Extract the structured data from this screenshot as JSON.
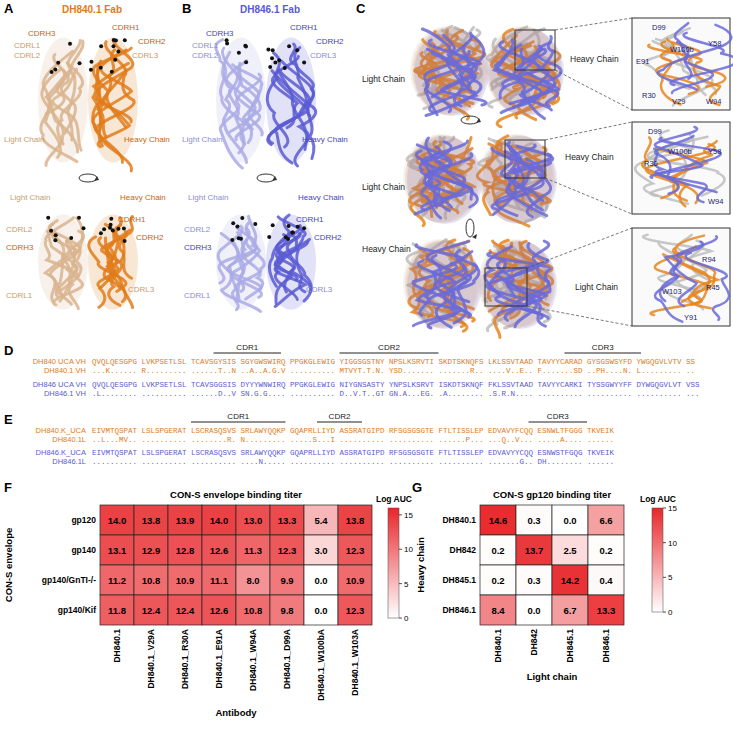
{
  "panels": {
    "A": {
      "label": "A",
      "title": "DH840.1 Fab",
      "top_labels": [
        "CDRH3",
        "CDRH1",
        "CDRH2",
        "CDRL1",
        "CDRL2",
        "CDRL3",
        "Light Chain",
        "Heavy Chain"
      ],
      "bottom_labels": [
        "CDRH1",
        "CDRH2",
        "CDRH3",
        "CDRL2",
        "CDRL3",
        "CDRL1",
        "Light Chain",
        "Heavy Chain"
      ]
    },
    "B": {
      "label": "B",
      "title": "DH846.1 Fab",
      "top_labels": [
        "CDRH3",
        "CDRH1",
        "CDRH2",
        "CDRL1",
        "CDRL2",
        "CDRL3",
        "Light Chain",
        "Heavy Chain"
      ],
      "bottom_labels": [
        "CDRH1",
        "CDRH2",
        "CDRH3",
        "CDRL2",
        "CDRL3",
        "CDRL1",
        "Light Chain",
        "Heavy Chain"
      ]
    },
    "C": {
      "label": "C",
      "views": [
        {
          "labels": [
            "Light Chain",
            "Heavy Chain"
          ],
          "residues": [
            "D99",
            "W100b",
            "Y58",
            "E91",
            "V29",
            "R30",
            "W94"
          ]
        },
        {
          "labels": [
            "Light Chain",
            "Heavy Chain"
          ],
          "residues": [
            "D99",
            "W100b",
            "Y58",
            "R30",
            "W94"
          ]
        },
        {
          "labels": [
            "Heavy Chain",
            "Light Chain"
          ],
          "residues": [
            "R94",
            "R45",
            "W103",
            "Y91"
          ]
        }
      ]
    },
    "D": {
      "label": "D",
      "headers": [
        "CDR1",
        "CDR2",
        "CDR3"
      ],
      "rows": [
        {
          "name": "DH840 UCA VH",
          "sequence": "QVQLQESGPG LVKPSETLSL TCAVSGYSIS SGYGWSWIRQ PPGKGLEWIG YIGGSGSTNY NPSLKSRVTI SKDTSKNQFS LKLSSVTAAD TAVYYCARAD GYSGSWSYFD YWGQGVLVTV SS"
        },
        {
          "name": "DH840.1 VH",
          "sequence": "...K...... R......... ......T..N ..A..A.G.V .......... MTVYT.T.N. YSD....... .......R.. ....V..E.. F.......SD ..PH....N. L......... .."
        },
        {
          "name": "DH846 UCA VH",
          "sequence": "QVQLQESGPG LVKPSETLSL TCAVSGGSIS DYYYWNWIRQ PPGKGLEWIG NIYGNSASTY YNPSLKSRVT ISKDTSKNQF FKLSSVTAAD TAVYYCARKI TYSSGWYYFF DYWGQGVLVT VSS"
        },
        {
          "name": "DH846.1 VH",
          "sequence": ".L........ .......... ......D..V SN.G.G.... .......... D..V.T..GT GN.A...EG. .A........ .S.R.N.... .......... .......... .......... ..."
        }
      ]
    },
    "E": {
      "label": "E",
      "headers": [
        "CDR1",
        "CDR2",
        "CDR3"
      ],
      "rows": [
        {
          "name": "DH840.K_UCA",
          "sequence": "EIVMTQSPAT LSLSPGERAT LSCRASQSVS SRLAWYQQKP GQAPRLLIYD ASSRATGIPD RFSGSGSGTE FTLTISSLEP EDVAVYFCQQ ESNWLTFGGG TKVEIK"
        },
        {
          "name": "DH840.1L",
          "sequence": "..L...MV.. .......... ........R. N......... .....S...I .......... .......... ......P... ...Q..V... .....A.... ......"
        },
        {
          "name": "DH846.K_UCA",
          "sequence": "EIVMTQSPAT LSLSPGERAT LSCRASQSVS SRLAWYQQKP GQAPRLLIYD ASSRATGIPD RFSGSGSGTE FTLTISSLEP EDVAVYYCQQ ESNWSTFGQG TKVEIK"
        },
        {
          "name": "DH846.1L",
          "sequence": ".......... .......... .......... ....N..... .......... .......... .......... .......... .......G.. DH........ ......"
        }
      ]
    },
    "F": {
      "label": "F"
    },
    "G": {
      "label": "G"
    }
  },
  "chart_data": [
    {
      "type": "heatmap",
      "title": "CON-S envelope binding titer",
      "x_label": "Antibody",
      "y_label": "CON-S envelope",
      "categories": [
        "DH840.1",
        "DH840.1_V29A",
        "DH840.1_R30A",
        "DH840.1_E91A",
        "DH840.1_W94A",
        "DH840.1_D99A",
        "DH840.1_W100bA",
        "DH840.1_W103A"
      ],
      "rows": [
        "gp120",
        "gp140",
        "gp140/GnTI-/-",
        "gp140/Kif"
      ],
      "values": [
        [
          14.0,
          13.8,
          13.9,
          14.0,
          13.0,
          13.3,
          5.4,
          13.8
        ],
        [
          13.1,
          12.9,
          12.8,
          12.6,
          11.3,
          12.3,
          3.0,
          12.3
        ],
        [
          11.2,
          10.8,
          10.9,
          11.1,
          8.0,
          9.9,
          0.0,
          10.9
        ],
        [
          11.8,
          12.4,
          12.4,
          12.6,
          10.8,
          9.8,
          0.0,
          12.3
        ]
      ],
      "value_labels": [
        [
          "14.0",
          "13.8",
          "13.9",
          "14.0",
          "13.0",
          "13.3",
          "5.4",
          "13.8"
        ],
        [
          "13.1",
          "12.9",
          "12.8",
          "12.6",
          "11.3",
          "12.3",
          "3.0",
          "12.3"
        ],
        [
          "11.2",
          "10.8",
          "10.9",
          "11.1",
          "8.0",
          "9.9",
          "0.0",
          "10.9"
        ],
        [
          "11.8",
          "12.4",
          "12.4",
          "12.6",
          "10.8",
          "9.8",
          "0.0",
          "12.3"
        ]
      ],
      "colorbar": {
        "label": "Log AUC",
        "range": [
          0,
          16
        ],
        "ticks": [
          0,
          5,
          10,
          15
        ]
      },
      "color": "#e8262a",
      "data_labels": true
    },
    {
      "type": "heatmap",
      "title": "CON-S gp120 binding titer",
      "x_label": "Light chain",
      "y_label": "Heavy chain",
      "categories": [
        "DH840.1",
        "DH842",
        "DH845.1",
        "DH846.1"
      ],
      "rows": [
        "DH840.1",
        "DH842",
        "DH845.1",
        "DH846.1"
      ],
      "values": [
        [
          14.6,
          0.3,
          0.0,
          6.6
        ],
        [
          0.2,
          13.7,
          2.5,
          0.2
        ],
        [
          0.2,
          0.3,
          14.2,
          0.4
        ],
        [
          8.4,
          0.0,
          6.7,
          13.3
        ]
      ],
      "value_labels": [
        [
          "14.6",
          "0.3",
          "0.0",
          "6.6"
        ],
        [
          "0.2",
          "13.7",
          "2.5",
          "0.2"
        ],
        [
          "0.2",
          "0.3",
          "14.2",
          "0.4"
        ],
        [
          "8.4",
          "0.0",
          "6.7",
          "13.3"
        ]
      ],
      "colorbar": {
        "label": "Log AUC",
        "range": [
          0,
          15
        ],
        "ticks": [
          0,
          5,
          10,
          15
        ]
      },
      "color": "#e8262a",
      "data_labels": true
    }
  ]
}
